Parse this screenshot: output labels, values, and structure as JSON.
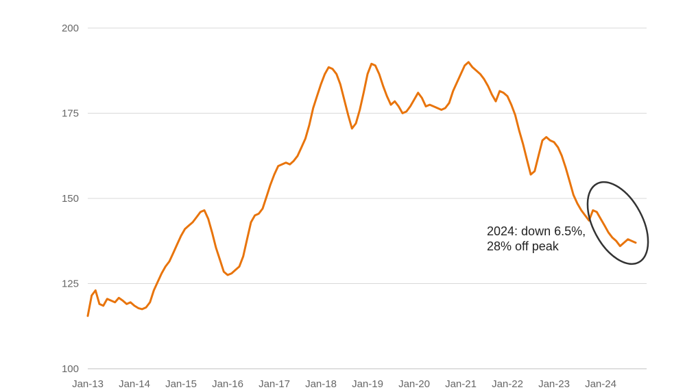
{
  "chart_data": {
    "type": "line",
    "title": "",
    "xlabel": "",
    "ylabel": "",
    "ylim": [
      100,
      200
    ],
    "yticks": [
      100,
      125,
      150,
      175,
      200
    ],
    "xticks": [
      "Jan-13",
      "Jan-14",
      "Jan-15",
      "Jan-16",
      "Jan-17",
      "Jan-18",
      "Jan-19",
      "Jan-20",
      "Jan-21",
      "Jan-22",
      "Jan-23",
      "Jan-24"
    ],
    "grid": "horizontal",
    "legend": "none",
    "series": [
      {
        "color": "#E8740C",
        "points": [
          [
            "2013-01",
            115.5
          ],
          [
            "2013-02",
            121.5
          ],
          [
            "2013-03",
            123.0
          ],
          [
            "2013-04",
            119.0
          ],
          [
            "2013-05",
            118.5
          ],
          [
            "2013-06",
            120.5
          ],
          [
            "2013-07",
            120.0
          ],
          [
            "2013-08",
            119.5
          ],
          [
            "2013-09",
            120.8
          ],
          [
            "2013-10",
            120.0
          ],
          [
            "2013-11",
            119.0
          ],
          [
            "2013-12",
            119.5
          ],
          [
            "2014-01",
            118.5
          ],
          [
            "2014-02",
            117.8
          ],
          [
            "2014-03",
            117.5
          ],
          [
            "2014-04",
            118.0
          ],
          [
            "2014-05",
            119.5
          ],
          [
            "2014-06",
            123.0
          ],
          [
            "2014-07",
            125.5
          ],
          [
            "2014-08",
            128.0
          ],
          [
            "2014-09",
            130.0
          ],
          [
            "2014-10",
            131.5
          ],
          [
            "2014-11",
            134.0
          ],
          [
            "2014-12",
            136.5
          ],
          [
            "2015-01",
            139.0
          ],
          [
            "2015-02",
            141.0
          ],
          [
            "2015-03",
            142.0
          ],
          [
            "2015-04",
            143.0
          ],
          [
            "2015-05",
            144.5
          ],
          [
            "2015-06",
            146.0
          ],
          [
            "2015-07",
            146.5
          ],
          [
            "2015-08",
            144.0
          ],
          [
            "2015-09",
            140.0
          ],
          [
            "2015-10",
            135.5
          ],
          [
            "2015-11",
            132.0
          ],
          [
            "2015-12",
            128.5
          ],
          [
            "2016-01",
            127.5
          ],
          [
            "2016-02",
            128.0
          ],
          [
            "2016-03",
            129.0
          ],
          [
            "2016-04",
            130.0
          ],
          [
            "2016-05",
            133.0
          ],
          [
            "2016-06",
            138.0
          ],
          [
            "2016-07",
            143.0
          ],
          [
            "2016-08",
            145.0
          ],
          [
            "2016-09",
            145.5
          ],
          [
            "2016-10",
            147.0
          ],
          [
            "2016-11",
            150.5
          ],
          [
            "2016-12",
            154.0
          ],
          [
            "2017-01",
            157.0
          ],
          [
            "2017-02",
            159.5
          ],
          [
            "2017-03",
            160.0
          ],
          [
            "2017-04",
            160.5
          ],
          [
            "2017-05",
            160.0
          ],
          [
            "2017-06",
            161.0
          ],
          [
            "2017-07",
            162.5
          ],
          [
            "2017-08",
            165.0
          ],
          [
            "2017-09",
            167.5
          ],
          [
            "2017-10",
            171.5
          ],
          [
            "2017-11",
            176.5
          ],
          [
            "2017-12",
            180.0
          ],
          [
            "2018-01",
            183.5
          ],
          [
            "2018-02",
            186.5
          ],
          [
            "2018-03",
            188.5
          ],
          [
            "2018-04",
            188.0
          ],
          [
            "2018-05",
            186.5
          ],
          [
            "2018-06",
            183.5
          ],
          [
            "2018-07",
            179.0
          ],
          [
            "2018-08",
            174.5
          ],
          [
            "2018-09",
            170.5
          ],
          [
            "2018-10",
            172.0
          ],
          [
            "2018-11",
            176.0
          ],
          [
            "2018-12",
            181.0
          ],
          [
            "2019-01",
            186.5
          ],
          [
            "2019-02",
            189.5
          ],
          [
            "2019-03",
            189.0
          ],
          [
            "2019-04",
            186.5
          ],
          [
            "2019-05",
            183.0
          ],
          [
            "2019-06",
            180.0
          ],
          [
            "2019-07",
            177.5
          ],
          [
            "2019-08",
            178.5
          ],
          [
            "2019-09",
            177.0
          ],
          [
            "2019-10",
            175.0
          ],
          [
            "2019-11",
            175.5
          ],
          [
            "2019-12",
            177.0
          ],
          [
            "2020-01",
            179.0
          ],
          [
            "2020-02",
            181.0
          ],
          [
            "2020-03",
            179.5
          ],
          [
            "2020-04",
            177.0
          ],
          [
            "2020-05",
            177.5
          ],
          [
            "2020-06",
            177.0
          ],
          [
            "2020-07",
            176.5
          ],
          [
            "2020-08",
            176.0
          ],
          [
            "2020-09",
            176.5
          ],
          [
            "2020-10",
            178.0
          ],
          [
            "2020-11",
            181.5
          ],
          [
            "2020-12",
            184.0
          ],
          [
            "2021-01",
            186.5
          ],
          [
            "2021-02",
            189.0
          ],
          [
            "2021-03",
            190.0
          ],
          [
            "2021-04",
            188.5
          ],
          [
            "2021-05",
            187.5
          ],
          [
            "2021-06",
            186.5
          ],
          [
            "2021-07",
            185.0
          ],
          [
            "2021-08",
            183.0
          ],
          [
            "2021-09",
            180.5
          ],
          [
            "2021-10",
            178.5
          ],
          [
            "2021-11",
            181.5
          ],
          [
            "2021-12",
            181.0
          ],
          [
            "2022-01",
            180.0
          ],
          [
            "2022-02",
            177.5
          ],
          [
            "2022-03",
            174.5
          ],
          [
            "2022-04",
            170.0
          ],
          [
            "2022-05",
            166.0
          ],
          [
            "2022-06",
            161.5
          ],
          [
            "2022-07",
            157.0
          ],
          [
            "2022-08",
            158.0
          ],
          [
            "2022-09",
            162.5
          ],
          [
            "2022-10",
            167.0
          ],
          [
            "2022-11",
            168.0
          ],
          [
            "2022-12",
            167.0
          ],
          [
            "2023-01",
            166.5
          ],
          [
            "2023-02",
            165.0
          ],
          [
            "2023-03",
            162.5
          ],
          [
            "2023-04",
            159.0
          ],
          [
            "2023-05",
            155.0
          ],
          [
            "2023-06",
            151.0
          ],
          [
            "2023-07",
            148.5
          ],
          [
            "2023-08",
            146.5
          ],
          [
            "2023-09",
            145.0
          ],
          [
            "2023-10",
            143.5
          ],
          [
            "2023-11",
            146.5
          ],
          [
            "2023-12",
            146.0
          ],
          [
            "2024-01",
            144.0
          ],
          [
            "2024-02",
            142.0
          ],
          [
            "2024-03",
            140.0
          ],
          [
            "2024-04",
            138.5
          ],
          [
            "2024-05",
            137.5
          ],
          [
            "2024-06",
            136.0
          ],
          [
            "2024-07",
            137.0
          ],
          [
            "2024-08",
            138.0
          ],
          [
            "2024-09",
            137.5
          ],
          [
            "2024-10",
            137.0
          ]
        ]
      }
    ],
    "annotation": {
      "lines": [
        "2024: down 6.5%,",
        "28% off peak"
      ],
      "ellipse_color": "#333333"
    },
    "grid_color": "#d9d9d9",
    "tick_color": "#666666"
  }
}
